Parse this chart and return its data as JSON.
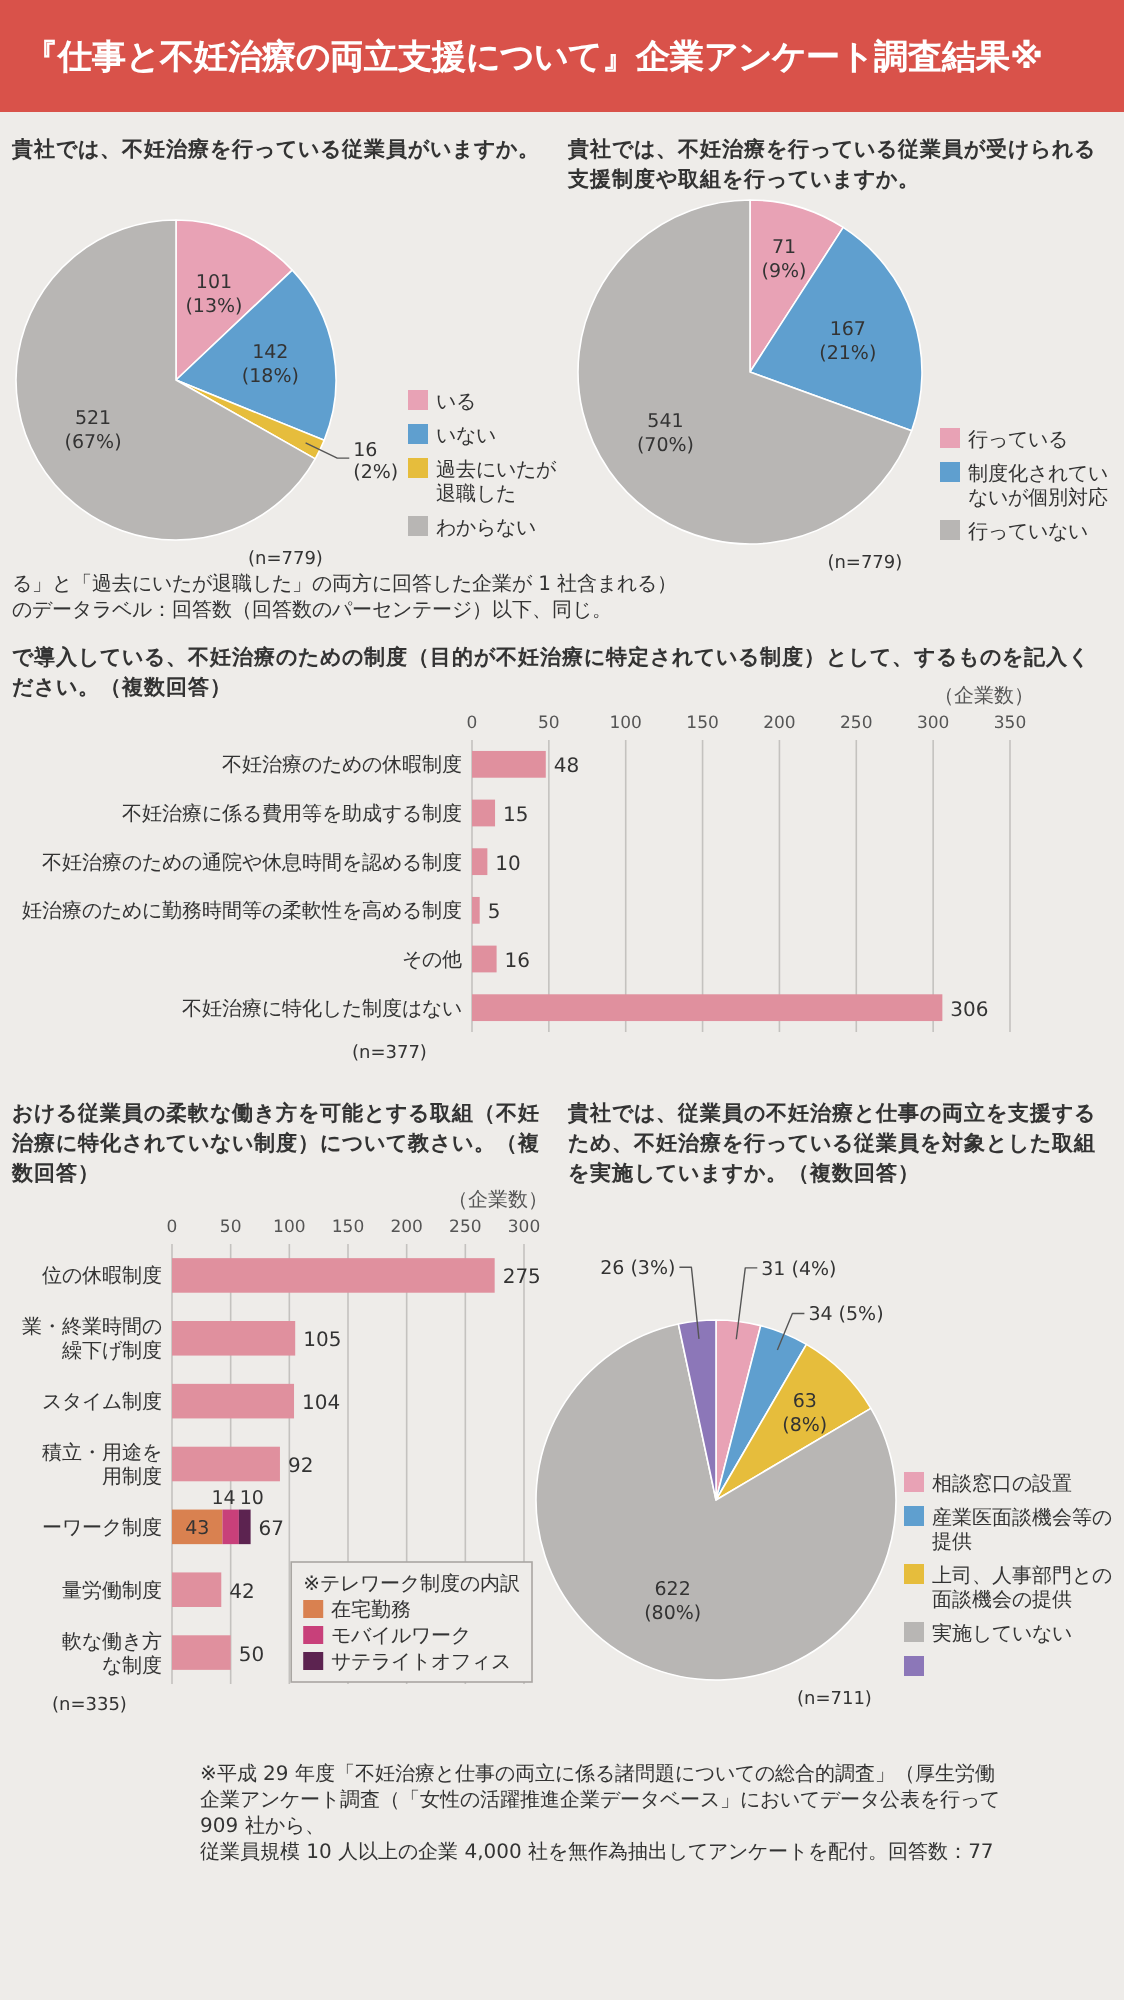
{
  "chart_data": [
    {
      "type": "other",
      "title": "『仕事と不妊治療の両立支援について』企業アンケート調査結果※"
    },
    {
      "type": "pie",
      "title": "貴社では、不妊治療を行っている従業員がいますか。",
      "categories": [
        "いる",
        "いない",
        "過去にいたが退職した",
        "わからない"
      ],
      "values": [
        101,
        142,
        16,
        521
      ],
      "colors": [
        "#e8a2b5",
        "#5f9fcf",
        "#e6bd3c",
        "#b8b6b4"
      ],
      "value_labels": [
        "101 (13%)",
        "142 (18%)",
        "16 (2%)",
        "521 (67%)"
      ],
      "legend": "bottom right",
      "annotations": [
        "(n=779)",
        "る」と「過去にいたが退職した」の両方に回答した企業が 1 社含まれる）",
        "のデータラベル：回答数（回答数のパーセンテージ）以下、同じ。"
      ]
    },
    {
      "type": "pie",
      "title": "貴社では、不妊治療を行っている従業員が受けられる支援制度や取組を行っていますか。",
      "categories": [
        "行っている",
        "制度化されていないが個別対応",
        "行っていない"
      ],
      "values": [
        71,
        167,
        541
      ],
      "colors": [
        "#e8a2b5",
        "#5f9fcf",
        "#b8b6b4"
      ],
      "value_labels": [
        "71 (9%)",
        "167 (21%)",
        "541 (70%)"
      ],
      "legend": "bottom right",
      "annotations": [
        "(n=779)"
      ]
    },
    {
      "type": "bar",
      "orientation": "horizontal",
      "title": "で導入している、不妊治療のための制度（目的が不妊治療に特定されている制度）として、するものを記入ください。（複数回答）",
      "categories": [
        "不妊治療のための休暇制度",
        "不妊治療に係る費用等を助成する制度",
        "不妊治療のための通院や休息時間を認める制度",
        "妊治療のために勤務時間等の柔軟性を高める制度",
        "その他",
        "不妊治療に特化した制度はない"
      ],
      "values": [
        48,
        15,
        10,
        5,
        16,
        306
      ],
      "color": "#e0909e",
      "data_labels": true,
      "xlim": [
        0,
        350
      ],
      "xticks": [
        0,
        50,
        100,
        150,
        200,
        250,
        300,
        350
      ],
      "xlabel": "（企業数）",
      "grid": "x",
      "annotations": [
        "(n=377)"
      ]
    },
    {
      "type": "bar",
      "orientation": "horizontal",
      "stacked": true,
      "title": "おける従業員の柔軟な働き方を可能とする取組（不妊治療に特化されていない制度）について教さい。（複数回答）",
      "categories": [
        "位の休暇制度",
        "業・終業時間の繰下げ制度",
        "スタイム制度",
        "積立・用途を用制度",
        "ーワーク制度",
        "量労働制度",
        "軟な働き方な制度"
      ],
      "series": [
        {
          "color": "#e0909e",
          "values": [
            275,
            105,
            104,
            92,
            null,
            42,
            50
          ]
        },
        {
          "name": "在宅勤務",
          "color": "#d98150",
          "values": [
            null,
            null,
            null,
            null,
            43,
            null,
            null
          ]
        },
        {
          "name": "モバイルワーク",
          "color": "#c8407a",
          "values": [
            null,
            null,
            null,
            null,
            14,
            null,
            null
          ]
        },
        {
          "name": "サテライトオフィス",
          "color": "#5c2350",
          "values": [
            null,
            null,
            null,
            null,
            10,
            null,
            null
          ]
        }
      ],
      "data_labels": true,
      "totals": [
        null,
        null,
        null,
        null,
        "67",
        null,
        null
      ],
      "legend": "bottom right",
      "legend_title": "※テレワーク制度の内訳",
      "xlim": [
        0,
        300
      ],
      "xticks": [
        0,
        50,
        100,
        150,
        200,
        250,
        300
      ],
      "xlabel": "（企業数）",
      "grid": "x",
      "annotations": [
        "(n=335)"
      ]
    },
    {
      "type": "pie",
      "title": "貴社では、従業員の不妊治療と仕事の両立を支援するため、不妊治療を行っている従業員を対象とした取組を実施していますか。（複数回答）",
      "categories": [
        "相談窓口の設置",
        "産業医面談機会等の提供",
        "上司、人事部門との面談機会の提供",
        "実施していない",
        null
      ],
      "values": [
        31,
        34,
        63,
        622,
        26
      ],
      "colors": [
        "#e8a2b5",
        "#5f9fcf",
        "#e6bd3c",
        "#b8b6b4",
        "#8c77b8"
      ],
      "value_labels": [
        "31 (4%)",
        "34 (5%)",
        "63 (8%)",
        "622 (80%)",
        "26 (3%)"
      ],
      "legend": "bottom right",
      "annotations": [
        "(n=711)"
      ]
    },
    {
      "type": "other",
      "annotations": [
        "※平成 29 年度「不妊治療と仕事の両立に係る諸問題についての総合的調査」（厚生労働",
        "企業アンケート調査（「女性の活躍推進企業データベース」においてデータ公表を行って",
        "909 社から、",
        "従業員規模 10 人以上の企業 4,000 社を無作為抽出してアンケートを配付。回答数：77"
      ]
    }
  ]
}
